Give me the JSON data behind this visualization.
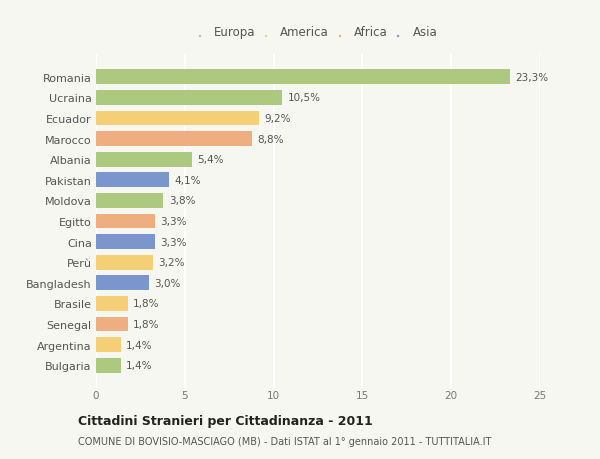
{
  "countries": [
    "Romania",
    "Ucraina",
    "Ecuador",
    "Marocco",
    "Albania",
    "Pakistan",
    "Moldova",
    "Egitto",
    "Cina",
    "Perù",
    "Bangladesh",
    "Brasile",
    "Senegal",
    "Argentina",
    "Bulgaria"
  ],
  "values": [
    23.3,
    10.5,
    9.2,
    8.8,
    5.4,
    4.1,
    3.8,
    3.3,
    3.3,
    3.2,
    3.0,
    1.8,
    1.8,
    1.4,
    1.4
  ],
  "labels": [
    "23,3%",
    "10,5%",
    "9,2%",
    "8,8%",
    "5,4%",
    "4,1%",
    "3,8%",
    "3,3%",
    "3,3%",
    "3,2%",
    "3,0%",
    "1,8%",
    "1,8%",
    "1,4%",
    "1,4%"
  ],
  "continents": [
    "Europa",
    "Europa",
    "America",
    "Africa",
    "Europa",
    "Asia",
    "Europa",
    "Africa",
    "Asia",
    "America",
    "Asia",
    "America",
    "Africa",
    "America",
    "Europa"
  ],
  "colors": {
    "Europa": "#adc97f",
    "America": "#f5cf76",
    "Africa": "#eeae80",
    "Asia": "#7b96cc"
  },
  "legend_order": [
    "Europa",
    "America",
    "Africa",
    "Asia"
  ],
  "title": "Cittadini Stranieri per Cittadinanza - 2011",
  "subtitle": "COMUNE DI BOVISIO-MASCIAGO (MB) - Dati ISTAT al 1° gennaio 2011 - TUTTITALIA.IT",
  "xlim": [
    0,
    25
  ],
  "xticks": [
    0,
    5,
    10,
    15,
    20,
    25
  ],
  "background_color": "#f7f7f2",
  "grid_color": "#ffffff",
  "bar_height": 0.72
}
